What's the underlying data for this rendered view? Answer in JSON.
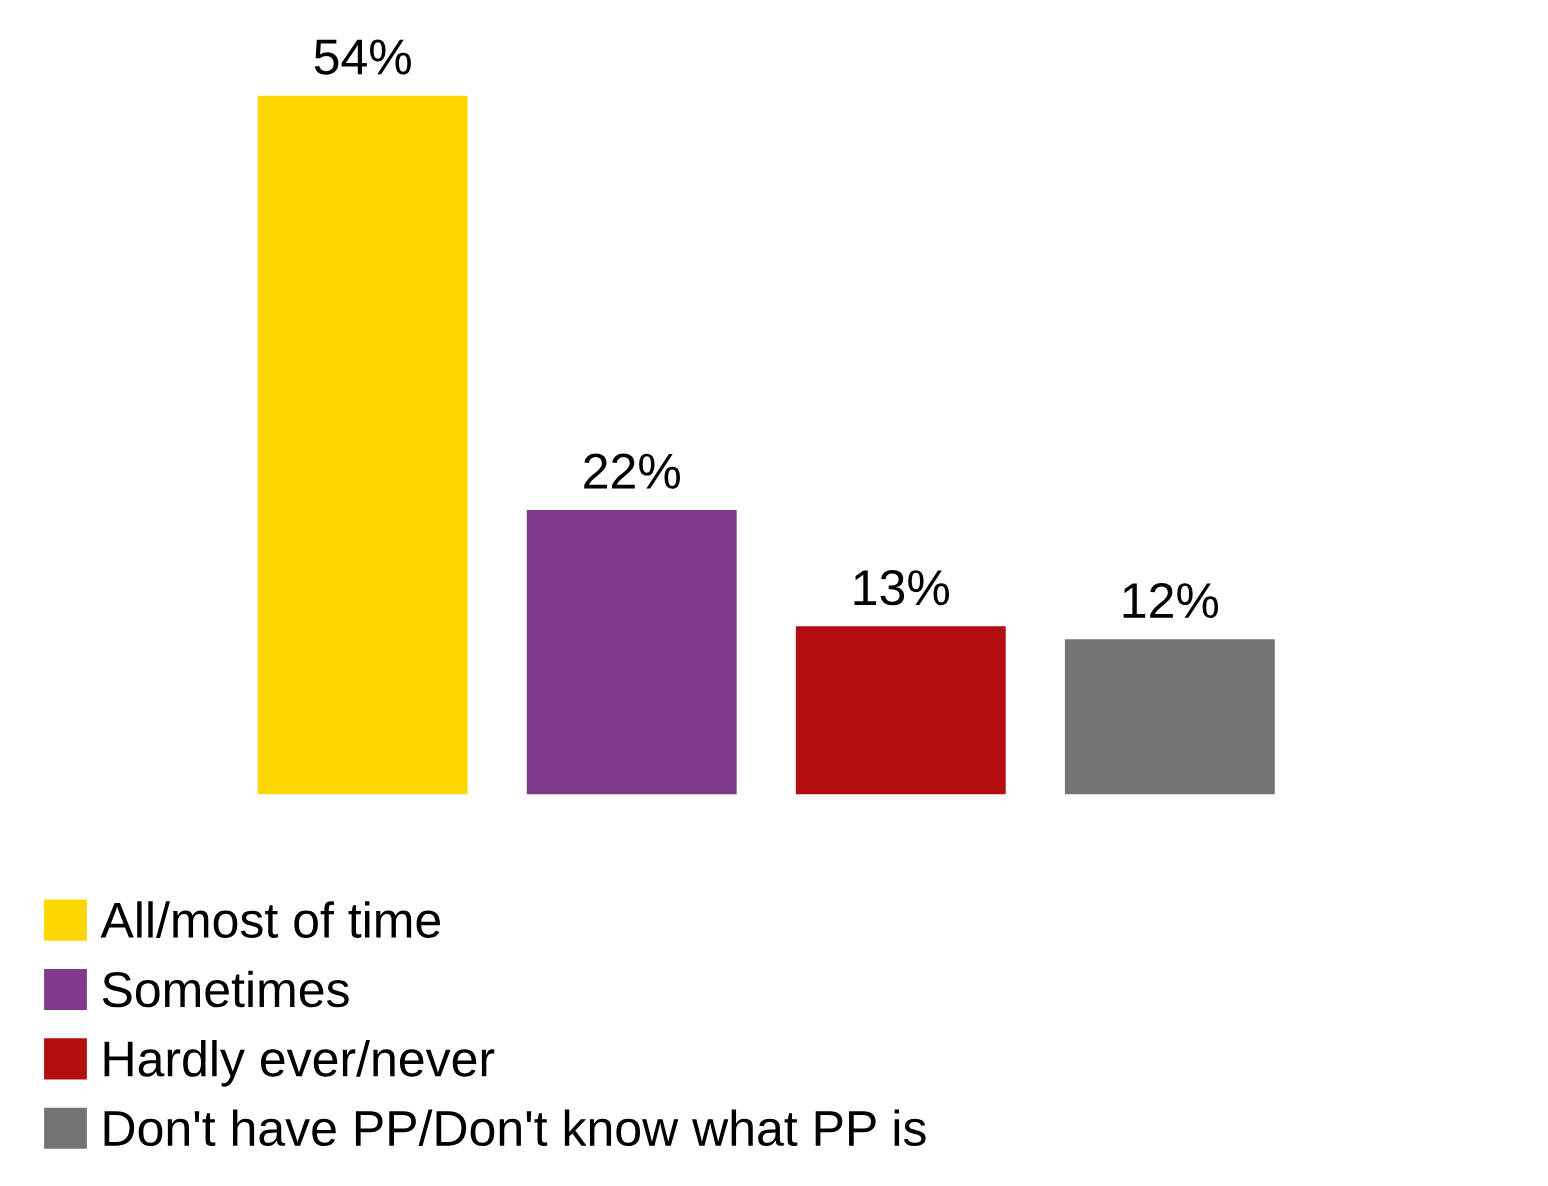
{
  "chart_data": {
    "type": "bar",
    "categories": [
      null
    ],
    "series": [
      {
        "name": "All/most of time",
        "color": "#ffd700",
        "values": [
          54
        ],
        "value_labels": [
          "54%"
        ]
      },
      {
        "name": "Sometimes",
        "color": "#7f3a8c",
        "values": [
          22
        ],
        "value_labels": [
          "22%"
        ]
      },
      {
        "name": "Hardly ever/never",
        "color": "#b20e10",
        "values": [
          13
        ],
        "value_labels": [
          "13%"
        ]
      },
      {
        "name": "Don't have PP/Don't know what PP is",
        "color": "#747474",
        "values": [
          12
        ],
        "value_labels": [
          "12%"
        ]
      }
    ],
    "legend": "bottom left"
  }
}
